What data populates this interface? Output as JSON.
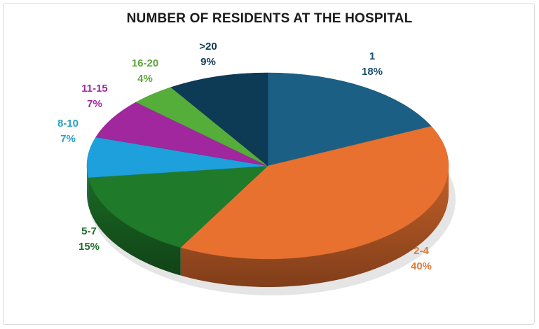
{
  "chart_data": {
    "type": "pie",
    "title": "NUMBER OF RESIDENTS AT THE HOSPITAL",
    "style": "3d-pie",
    "categories": [
      "1",
      "2-4",
      "5-7",
      "8-10",
      "11-15",
      "16-20",
      ">20"
    ],
    "values": [
      18,
      40,
      15,
      7,
      7,
      4,
      9
    ],
    "labels": [
      "18%",
      "40%",
      "15%",
      "7%",
      "7%",
      "4%",
      "9%"
    ],
    "colors": [
      "#1b5f84",
      "#e8712f",
      "#1f7a2a",
      "#1ea0dc",
      "#a0279d",
      "#55ad3a",
      "#0d3a54"
    ],
    "label_colors": [
      "#1b4f6e",
      "#e07a3a",
      "#1f6b2c",
      "#2a9fc9",
      "#a0279d",
      "#5aa63c",
      "#0d3a54"
    ],
    "legend": "none (data labels)"
  },
  "labels": [
    {
      "cat": "1",
      "pct": "18%"
    },
    {
      "cat": "2-4",
      "pct": "40%"
    },
    {
      "cat": "5-7",
      "pct": "15%"
    },
    {
      "cat": "8-10",
      "pct": "7%"
    },
    {
      "cat": "11-15",
      "pct": "7%"
    },
    {
      "cat": "16-20",
      "pct": "4%"
    },
    {
      "cat": ">20",
      "pct": "9%"
    }
  ]
}
